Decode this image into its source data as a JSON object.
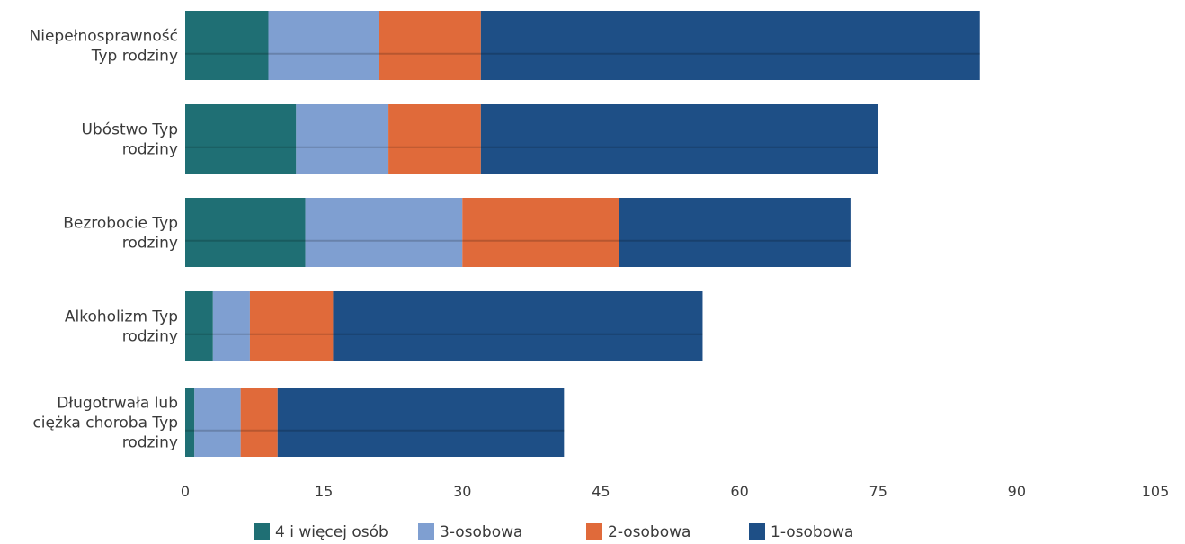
{
  "chart_data": {
    "type": "bar",
    "orientation": "horizontal",
    "stacked": true,
    "title": "",
    "xlabel": "",
    "ylabel": "",
    "categories": [
      [
        "Niepełnosprawność",
        "Typ rodziny"
      ],
      [
        "Ubóstwo Typ",
        "rodziny"
      ],
      [
        "Bezrobocie Typ",
        "rodziny"
      ],
      [
        "Alkoholizm Typ",
        "rodziny"
      ],
      [
        "Długotrwała lub",
        "ciężka choroba Typ",
        "rodziny"
      ]
    ],
    "series": [
      {
        "name": "4 i więcej osób",
        "color": "#1f6f74",
        "values": [
          9,
          12,
          13,
          3,
          1
        ]
      },
      {
        "name": "3-osobowa",
        "color": "#7f9fd1",
        "values": [
          12,
          10,
          17,
          4,
          5
        ]
      },
      {
        "name": "2-osobowa",
        "color": "#e06a3a",
        "values": [
          11,
          10,
          17,
          9,
          4
        ]
      },
      {
        "name": "1-osobowa",
        "color": "#1e4f86",
        "values": [
          54,
          43,
          25,
          40,
          31
        ]
      }
    ],
    "xlim": [
      0,
      105
    ],
    "xticks": [
      0,
      15,
      30,
      45,
      60,
      75,
      90,
      105
    ],
    "grid": false,
    "legend_position": "bottom"
  }
}
